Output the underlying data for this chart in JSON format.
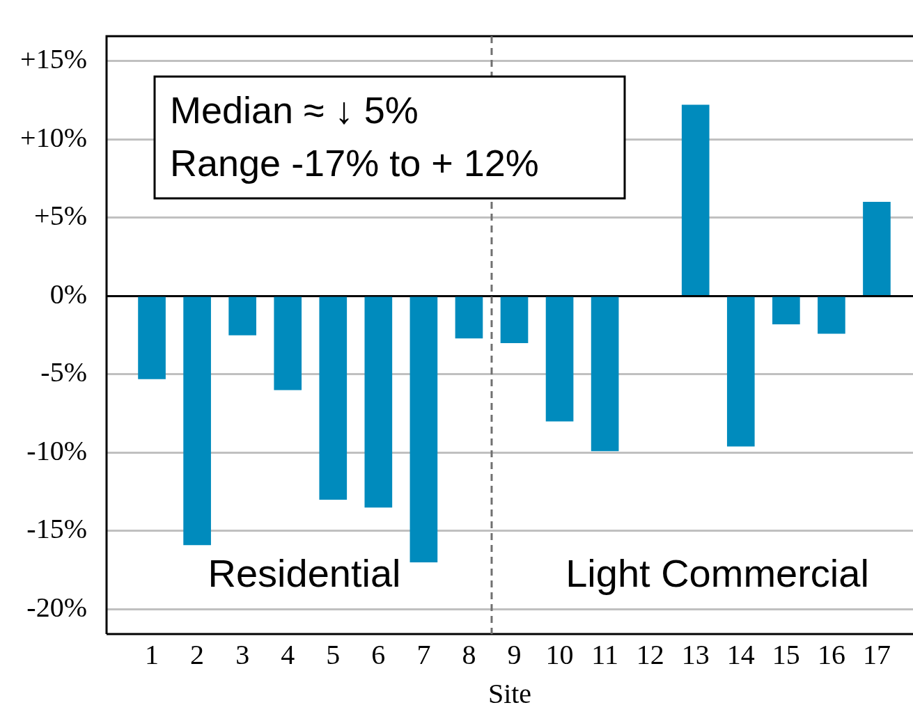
{
  "chart_data": {
    "type": "bar",
    "xlabel": "Site",
    "x": [
      1,
      2,
      3,
      4,
      5,
      6,
      7,
      8,
      9,
      10,
      11,
      12,
      13,
      14,
      15,
      16,
      17
    ],
    "values": [
      -5.3,
      -15.9,
      -2.5,
      -6.0,
      -13.0,
      -13.5,
      -17.0,
      -2.7,
      -3.0,
      -8.0,
      -9.9,
      null,
      12.2,
      -9.6,
      -1.8,
      -2.4,
      6.0
    ],
    "color": "#008bbd",
    "xlim": [
      0,
      17.8
    ],
    "xticks": [
      1,
      2,
      3,
      4,
      5,
      6,
      7,
      8,
      9,
      10,
      11,
      12,
      13,
      14,
      15,
      16,
      17
    ],
    "ylim": [
      -21.6,
      16.6
    ],
    "yticks": [
      {
        "value": -20,
        "label": "-20%"
      },
      {
        "value": -15,
        "label": "-15%"
      },
      {
        "value": -10,
        "label": "-10%"
      },
      {
        "value": -5,
        "label": "-5%"
      },
      {
        "value": 0,
        "label": "0%"
      },
      {
        "value": 5,
        "label": "+5%"
      },
      {
        "value": 10,
        "label": "+10%"
      },
      {
        "value": 15,
        "label": "+15%"
      }
    ],
    "grid": "y",
    "ref_lines": [
      {
        "axis": "x",
        "value": 8.5,
        "color": "#707070",
        "line_style": "dashed"
      }
    ],
    "annotations": [
      "Median ≈ ↓ 5%\nRange -17% to + 12%",
      "Residential",
      "Light Commercial"
    ]
  }
}
